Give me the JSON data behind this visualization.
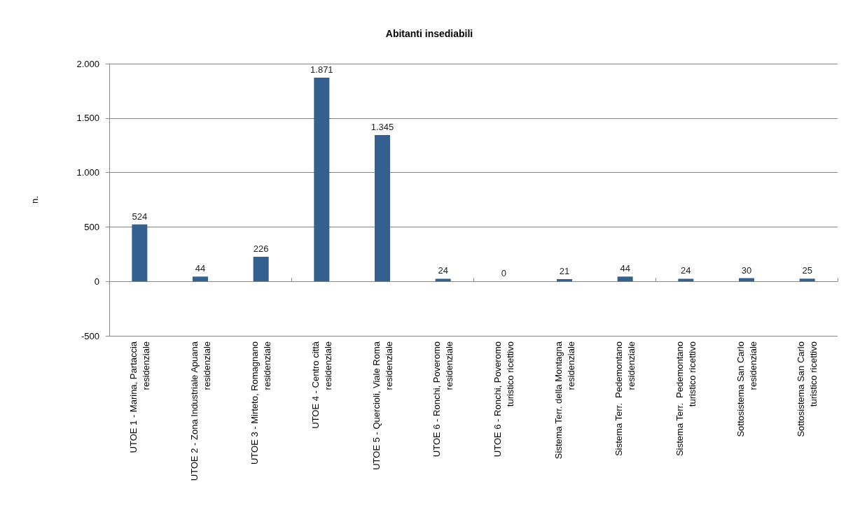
{
  "chart_data": {
    "type": "bar",
    "title": "Abitanti insediabili",
    "ylabel": "n.",
    "categories": [
      "UTOE 1 - Marina, Partaccia\nresidenziale",
      "UTOE 2 - Zona Industriale Apuana\nresidenziale",
      "UTOE 3 - Mirteto, Romagnano\nresidenziale",
      "UTOE 4 - Centro città\nresidenziale",
      "UTOE 5 - Quercioli, Viale Roma\nresidenziale",
      "UTOE 6 - Ronchi, Poveromo\nresidenziale",
      "UTOE 6 - Ronchi, Poveromo\nturistico ricettivo",
      "Sistema Terr. della Montagna\nresidenziale",
      "Sistema Terr.  Pedemontano\nresidenziale",
      "Sistema Terr.  Pedemontano\nturistico ricettivo",
      "Sottosistema San Carlo\nresidenziale",
      "Sottosistema San Carlo\nturistico ricettivo"
    ],
    "values": [
      524,
      44,
      226,
      1871,
      1345,
      24,
      0,
      21,
      44,
      24,
      30,
      25
    ],
    "value_labels": [
      "524",
      "44",
      "226",
      "1.871",
      "1.345",
      "24",
      "0",
      "21",
      "44",
      "24",
      "30",
      "25"
    ],
    "color": "#34608f",
    "ylim": [
      -500,
      2000
    ],
    "yticks": [
      {
        "value": -500,
        "label": "-500"
      },
      {
        "value": 0,
        "label": "0"
      },
      {
        "value": 500,
        "label": "500"
      },
      {
        "value": 1000,
        "label": "1.000"
      },
      {
        "value": 1500,
        "label": "1.500"
      },
      {
        "value": 2000,
        "label": "2.000"
      }
    ],
    "grid": "y"
  }
}
